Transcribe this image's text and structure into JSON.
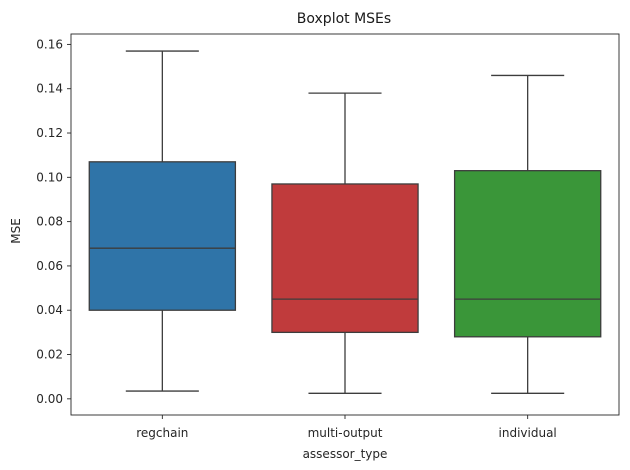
{
  "chart_data": {
    "type": "box",
    "title": "Boxplot MSEs",
    "xlabel": "assessor_type",
    "ylabel": "MSE",
    "ylim": [
      -0.0073,
      0.1647
    ],
    "yticks": [
      0.0,
      0.02,
      0.04,
      0.06,
      0.08,
      0.1,
      0.12,
      0.14,
      0.16
    ],
    "ytick_labels": [
      "0.00",
      "0.02",
      "0.04",
      "0.06",
      "0.08",
      "0.10",
      "0.12",
      "0.14",
      "0.16"
    ],
    "categories": [
      "regchain",
      "multi-output",
      "individual"
    ],
    "grid": false,
    "boxes": [
      {
        "category": "regchain",
        "color": "#2f74a8",
        "whisker_low": 0.0035,
        "q1": 0.04,
        "median": 0.068,
        "q3": 0.107,
        "whisker_high": 0.157
      },
      {
        "category": "multi-output",
        "color": "#c03b3c",
        "whisker_low": 0.0025,
        "q1": 0.03,
        "median": 0.045,
        "q3": 0.097,
        "whisker_high": 0.138
      },
      {
        "category": "individual",
        "color": "#3a9639",
        "whisker_low": 0.0025,
        "q1": 0.028,
        "median": 0.045,
        "q3": 0.103,
        "whisker_high": 0.146
      }
    ]
  }
}
